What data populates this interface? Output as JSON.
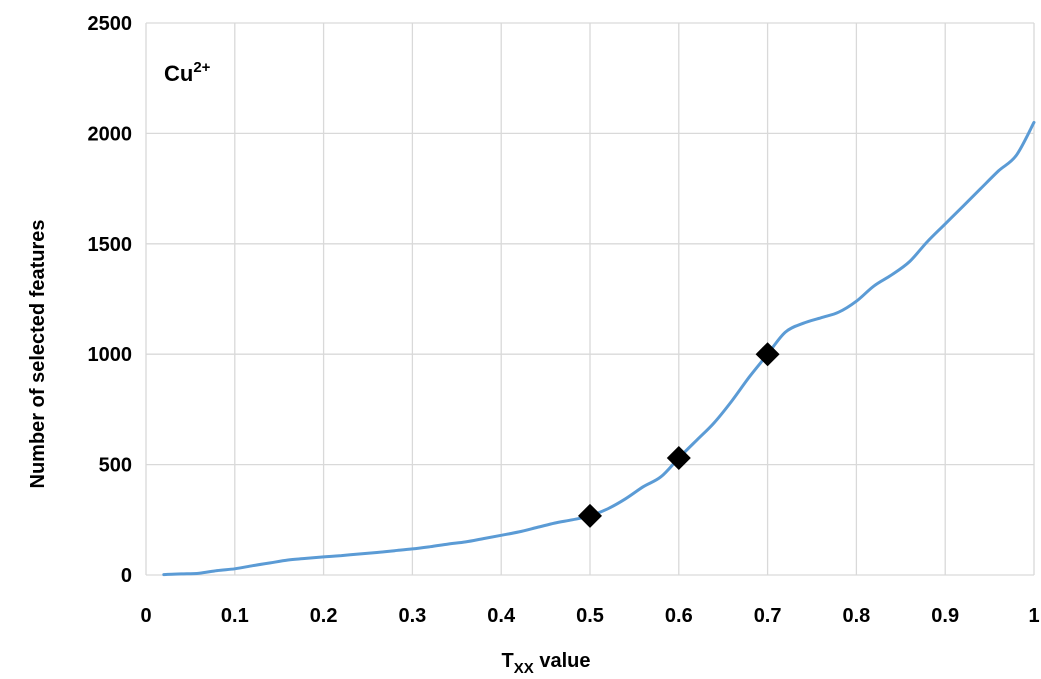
{
  "chart_data": {
    "type": "line",
    "annotation": {
      "base": "Cu",
      "sup": "2+"
    },
    "xlabel": {
      "base": "T",
      "sub": "XX",
      "rest": " value"
    },
    "ylabel": "Number of selected features",
    "xlim": [
      0,
      1
    ],
    "ylim": [
      0,
      2500
    ],
    "grid": true,
    "xticks": [
      "0",
      "0.1",
      "0.2",
      "0.3",
      "0.4",
      "0.5",
      "0.6",
      "0.7",
      "0.8",
      "0.9",
      "1"
    ],
    "yticks": [
      "0",
      "500",
      "1000",
      "1500",
      "2000",
      "2500"
    ],
    "line_color": "#5b9bd5",
    "marker_color": "#000000",
    "series": [
      {
        "x": [
          0.02,
          0.04,
          0.06,
          0.08,
          0.1,
          0.12,
          0.14,
          0.16,
          0.18,
          0.2,
          0.22,
          0.24,
          0.26,
          0.28,
          0.3,
          0.32,
          0.34,
          0.36,
          0.38,
          0.4,
          0.42,
          0.44,
          0.46,
          0.48,
          0.5,
          0.52,
          0.54,
          0.56,
          0.58,
          0.6,
          0.62,
          0.64,
          0.66,
          0.68,
          0.7,
          0.72,
          0.74,
          0.76,
          0.78,
          0.8,
          0.82,
          0.84,
          0.86,
          0.88,
          0.9,
          0.92,
          0.94,
          0.96,
          0.98,
          1.0
        ],
        "values": [
          2,
          5,
          8,
          20,
          28,
          42,
          55,
          68,
          75,
          82,
          88,
          95,
          102,
          110,
          118,
          128,
          140,
          150,
          165,
          180,
          195,
          215,
          235,
          250,
          268,
          300,
          345,
          400,
          445,
          530,
          610,
          690,
          790,
          900,
          1000,
          1100,
          1140,
          1165,
          1190,
          1240,
          1310,
          1360,
          1420,
          1510,
          1590,
          1670,
          1750,
          1830,
          1900,
          2050
        ]
      },
      {
        "x": [
          0.5,
          0.6,
          0.7
        ],
        "values": [
          268,
          530,
          1000
        ]
      }
    ]
  }
}
